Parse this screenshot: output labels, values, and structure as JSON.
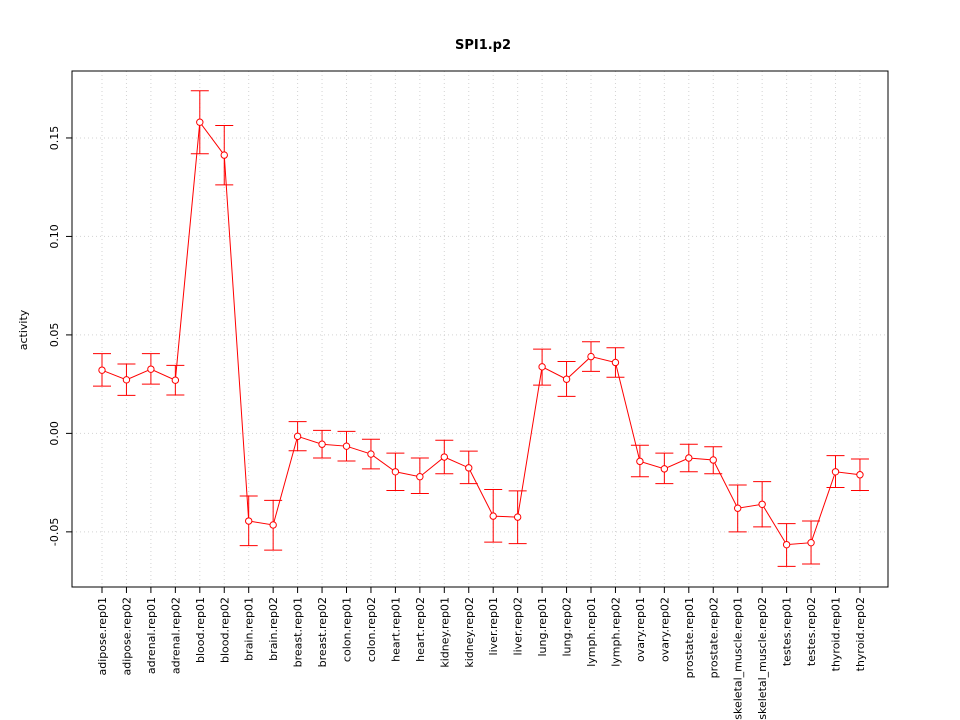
{
  "chart_data": {
    "type": "line",
    "title": "SPI1.p2",
    "xlabel": "",
    "ylabel": "activity",
    "ylim": [
      -0.078,
      0.184
    ],
    "yticks": [
      -0.05,
      0.0,
      0.05,
      0.1,
      0.15
    ],
    "ytick_labels": [
      "-0.05",
      "0.00",
      "0.05",
      "0.10",
      "0.15"
    ],
    "grid": true,
    "series_color": "#ff0000",
    "grid_color": "#d3d3d3",
    "categories": [
      "adipose.rep01",
      "adipose.rep02",
      "adrenal.rep01",
      "adrenal.rep02",
      "blood.rep01",
      "blood.rep02",
      "brain.rep01",
      "brain.rep02",
      "breast.rep01",
      "breast.rep02",
      "colon.rep01",
      "colon.rep02",
      "heart.rep01",
      "heart.rep02",
      "kidney.rep01",
      "kidney.rep02",
      "liver.rep01",
      "liver.rep02",
      "lung.rep01",
      "lung.rep02",
      "lymph.rep01",
      "lymph.rep02",
      "ovary.rep01",
      "ovary.rep02",
      "prostate.rep01",
      "prostate.rep02",
      "skeletal_muscle.rep01",
      "skeletal_muscle.rep02",
      "testes.rep01",
      "testes.rep02",
      "thyroid.rep01",
      "thyroid.rep02"
    ],
    "values": [
      0.0321,
      0.0272,
      0.0326,
      0.027,
      0.158,
      0.1413,
      -0.0445,
      -0.0465,
      -0.0015,
      -0.0055,
      -0.0065,
      -0.0105,
      -0.0195,
      -0.022,
      -0.012,
      -0.0175,
      -0.042,
      -0.0425,
      0.0338,
      0.0275,
      0.039,
      0.036,
      -0.0142,
      -0.018,
      -0.0125,
      -0.0135,
      -0.038,
      -0.036,
      -0.0565,
      -0.0555,
      -0.0195,
      -0.021
    ],
    "lower": [
      0.024,
      0.0193,
      0.025,
      0.0195,
      0.142,
      0.1262,
      -0.057,
      -0.0593,
      -0.0088,
      -0.0125,
      -0.014,
      -0.018,
      -0.029,
      -0.0305,
      -0.0205,
      -0.0255,
      -0.0552,
      -0.056,
      0.0245,
      0.0188,
      0.0315,
      0.0285,
      -0.022,
      -0.0255,
      -0.0195,
      -0.0205,
      -0.05,
      -0.0475,
      -0.0675,
      -0.0663,
      -0.0275,
      -0.029
    ],
    "upper": [
      0.0405,
      0.0352,
      0.0405,
      0.0345,
      0.174,
      0.1563,
      -0.0318,
      -0.034,
      0.006,
      0.0015,
      0.001,
      -0.003,
      -0.01,
      -0.0125,
      -0.0035,
      -0.009,
      -0.0285,
      -0.0292,
      0.0428,
      0.0365,
      0.0465,
      0.0435,
      -0.006,
      -0.01,
      -0.0055,
      -0.0068,
      -0.0262,
      -0.0245,
      -0.0458,
      -0.0445,
      -0.0113,
      -0.013
    ]
  }
}
